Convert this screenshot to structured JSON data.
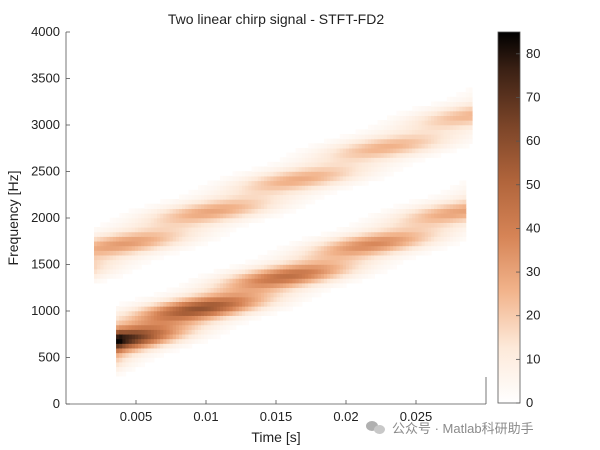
{
  "chart_data": {
    "type": "heatmap",
    "title": "Two linear chirp signal - STFT-FD2",
    "xlabel": "Time [s]",
    "ylabel": "Frequency [Hz]",
    "xlim": [
      0,
      0.03
    ],
    "ylim": [
      0,
      4000
    ],
    "xticks": [
      0.005,
      0.01,
      0.015,
      0.02,
      0.025
    ],
    "xtick_labels": [
      "0.005",
      "0.01",
      "0.015",
      "0.02",
      "0.025"
    ],
    "yticks": [
      0,
      500,
      1000,
      1500,
      2000,
      2500,
      3000,
      3500,
      4000
    ],
    "ytick_labels": [
      "0",
      "500",
      "1000",
      "1500",
      "2000",
      "2500",
      "3000",
      "3500",
      "4000"
    ],
    "colorbar": {
      "min": 0,
      "max": 85,
      "ticks": [
        0,
        10,
        20,
        30,
        40,
        50,
        60,
        70,
        80
      ],
      "tick_labels": [
        "0",
        "10",
        "20",
        "30",
        "40",
        "50",
        "60",
        "70",
        "80"
      ],
      "colormap": "copper-reversed",
      "low_color": "#ffffff",
      "high_color": "#000000"
    },
    "grid": false,
    "time_range": [
      0.002,
      0.029
    ],
    "series": [
      {
        "component": 1,
        "start": [
          0.004,
          700
        ],
        "end": [
          0.028,
          2050
        ],
        "peak_amplitude": 85,
        "end_amplitude": 30
      },
      {
        "component": 2,
        "start": [
          0.002,
          1600
        ],
        "end": [
          0.029,
          3100
        ],
        "peak_amplitude": 35,
        "end_amplitude": 25
      }
    ]
  },
  "watermark": "公众号 · Matlab科研助手"
}
